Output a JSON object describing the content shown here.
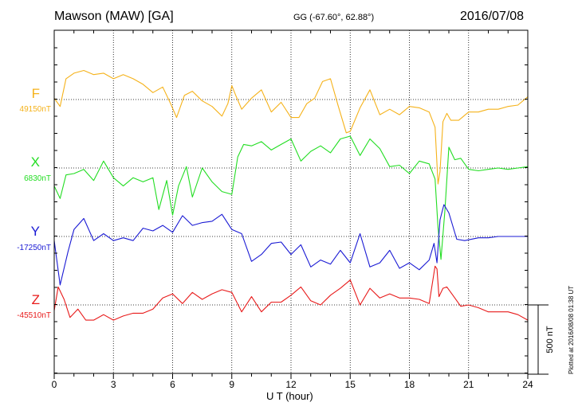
{
  "header": {
    "station": "Mawson (MAW)  [GA]",
    "coords": "GG (-67.60°,  62.88°)",
    "date": "2016/07/08"
  },
  "footer": {
    "plotted_at": "Plotted at 2016/08/08 01:38 UT"
  },
  "colors": {
    "F": "#f5b21a",
    "X": "#22dd22",
    "Y": "#1a1ad4",
    "Z": "#e81a1a",
    "grid": "#000000"
  },
  "chart_data": {
    "type": "line",
    "title": "Mawson (MAW)  [GA]",
    "xlabel": "U T (hour)",
    "x_ticks": [
      "0",
      "3",
      "6",
      "9",
      "12",
      "15",
      "18",
      "21",
      "24"
    ],
    "xlim": [
      0,
      24
    ],
    "scale_bar": "500 nT",
    "scale_bar_nT": 500,
    "grid": true,
    "series": [
      {
        "name": "F",
        "baseline_label": "49150nT",
        "baseline_nT": 49150,
        "x": [
          0,
          0.3,
          0.6,
          1,
          1.5,
          2,
          2.5,
          3,
          3.5,
          4,
          4.5,
          5,
          5.5,
          5.9,
          6.2,
          6.6,
          7,
          7.5,
          8,
          8.5,
          8.8,
          9,
          9.2,
          9.5,
          10,
          10.5,
          11,
          11.5,
          12,
          12.4,
          12.8,
          13.2,
          13.6,
          14,
          14.4,
          14.8,
          15,
          15.5,
          16,
          16.5,
          17,
          17.5,
          18,
          18.5,
          19,
          19.3,
          19.45,
          19.55,
          19.7,
          19.9,
          20.1,
          20.5,
          21,
          21.5,
          22,
          22.5,
          23,
          23.5,
          24
        ],
        "y": [
          49160,
          49100,
          49300,
          49340,
          49360,
          49330,
          49340,
          49300,
          49330,
          49300,
          49260,
          49200,
          49240,
          49120,
          49020,
          49180,
          49210,
          49140,
          49100,
          49030,
          49120,
          49250,
          49180,
          49080,
          49160,
          49220,
          49060,
          49130,
          49020,
          49020,
          49120,
          49160,
          49280,
          49300,
          49100,
          48910,
          48920,
          49090,
          49220,
          49040,
          49080,
          49040,
          49100,
          49090,
          49060,
          48950,
          48540,
          48630,
          48990,
          49050,
          49000,
          49000,
          49060,
          49060,
          49080,
          49080,
          49100,
          49110,
          49170
        ]
      },
      {
        "name": "X",
        "baseline_label": "6830nT",
        "baseline_nT": 6830,
        "x": [
          0,
          0.3,
          0.6,
          1,
          1.5,
          2,
          2.5,
          3,
          3.5,
          4,
          4.5,
          5,
          5.3,
          5.7,
          6,
          6.3,
          6.7,
          7,
          7.5,
          8,
          8.5,
          9,
          9.3,
          9.6,
          10,
          10.5,
          11,
          11.5,
          12,
          12.5,
          13,
          13.5,
          14,
          14.5,
          15,
          15.5,
          16,
          16.5,
          17,
          17.5,
          18,
          18.5,
          19,
          19.3,
          19.45,
          19.6,
          19.8,
          20,
          20.3,
          20.6,
          21,
          21.5,
          22,
          22.5,
          23,
          23.5,
          24
        ],
        "y": [
          6700,
          6610,
          6780,
          6790,
          6820,
          6740,
          6880,
          6760,
          6700,
          6760,
          6730,
          6760,
          6530,
          6740,
          6490,
          6700,
          6840,
          6620,
          6830,
          6730,
          6660,
          6640,
          6910,
          7000,
          6990,
          7020,
          6960,
          7000,
          7040,
          6880,
          6950,
          6990,
          6940,
          7040,
          7060,
          6920,
          7040,
          6970,
          6840,
          6850,
          6790,
          6880,
          6860,
          6750,
          6400,
          6170,
          6520,
          6980,
          6890,
          6900,
          6820,
          6810,
          6820,
          6830,
          6820,
          6830,
          6840
        ]
      },
      {
        "name": "Y",
        "baseline_label": "-17250nT",
        "baseline_nT": -17250,
        "x": [
          0,
          0.3,
          0.7,
          1,
          1.5,
          2,
          2.5,
          3,
          3.5,
          4,
          4.5,
          5,
          5.5,
          6,
          6.5,
          7,
          7.5,
          8,
          8.5,
          9,
          9.5,
          10,
          10.5,
          11,
          11.5,
          12,
          12.5,
          13,
          13.5,
          14,
          14.5,
          15,
          15.5,
          16,
          16.5,
          17,
          17.5,
          18,
          18.5,
          19,
          19.25,
          19.4,
          19.55,
          19.75,
          20,
          20.4,
          20.8,
          21.5,
          22,
          22.5,
          23,
          23.5,
          24
        ],
        "y": [
          -17280,
          -17600,
          -17360,
          -17200,
          -17120,
          -17280,
          -17230,
          -17280,
          -17260,
          -17280,
          -17190,
          -17210,
          -17170,
          -17220,
          -17100,
          -17170,
          -17150,
          -17140,
          -17090,
          -17200,
          -17230,
          -17430,
          -17380,
          -17300,
          -17290,
          -17380,
          -17310,
          -17470,
          -17420,
          -17450,
          -17350,
          -17440,
          -17230,
          -17470,
          -17440,
          -17350,
          -17480,
          -17440,
          -17490,
          -17420,
          -17300,
          -17440,
          -17130,
          -17020,
          -17080,
          -17270,
          -17280,
          -17260,
          -17260,
          -17250,
          -17250,
          -17250,
          -17250
        ]
      },
      {
        "name": "Z",
        "baseline_label": "-45510nT",
        "baseline_nT": -45510,
        "x": [
          0,
          0.2,
          0.5,
          0.8,
          1.2,
          1.6,
          2,
          2.5,
          3,
          3.5,
          4,
          4.5,
          5,
          5.5,
          6,
          6.5,
          7,
          7.5,
          8,
          8.5,
          9,
          9.5,
          10,
          10.5,
          11,
          11.5,
          12,
          12.5,
          13,
          13.5,
          14,
          14.5,
          15,
          15.5,
          16,
          16.5,
          17,
          17.5,
          18,
          18.5,
          19,
          19.3,
          19.4,
          19.5,
          19.7,
          19.9,
          20.2,
          20.6,
          21,
          21.5,
          22,
          22.5,
          23,
          23.5,
          24
        ],
        "y": [
          -45550,
          -45380,
          -45470,
          -45600,
          -45540,
          -45620,
          -45620,
          -45580,
          -45620,
          -45590,
          -45570,
          -45570,
          -45540,
          -45460,
          -45430,
          -45500,
          -45420,
          -45470,
          -45430,
          -45400,
          -45420,
          -45560,
          -45450,
          -45560,
          -45490,
          -45490,
          -45440,
          -45380,
          -45480,
          -45510,
          -45440,
          -45390,
          -45330,
          -45510,
          -45390,
          -45460,
          -45430,
          -45460,
          -45460,
          -45470,
          -45500,
          -45230,
          -45250,
          -45450,
          -45390,
          -45380,
          -45440,
          -45520,
          -45510,
          -45530,
          -45560,
          -45560,
          -45560,
          -45580,
          -45620
        ]
      }
    ]
  }
}
